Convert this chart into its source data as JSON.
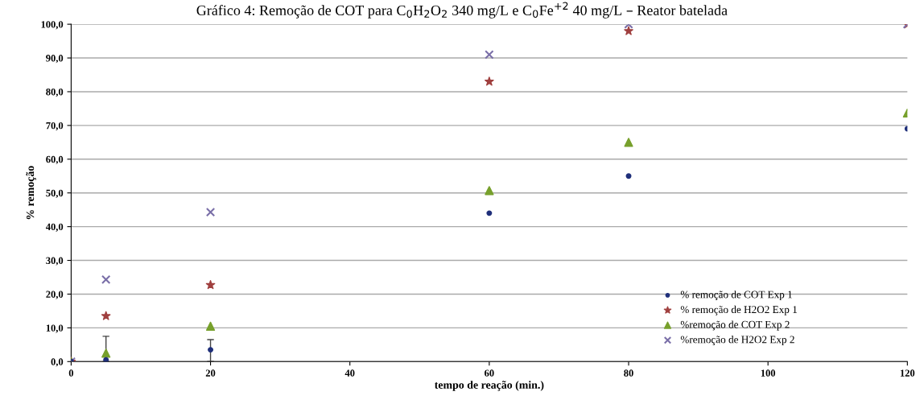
{
  "chart_data": {
    "type": "scatter",
    "title": "Gráfico 4: Remoção de COT para C$_{0}$H$_{2}$O$_{2}$ 340 mg/L e C$_{0}$Fe$^{+2}$ 40 mg/L – Reator batelada",
    "xlabel": "tempo de reação (min.)",
    "ylabel": "% remoção",
    "x": [
      0,
      5,
      20,
      60,
      80,
      120
    ],
    "series": [
      {
        "name": "% remoção de COT Exp 1",
        "color": "#1f2f7a",
        "marker": "circle",
        "values": [
          0,
          0.5,
          3.5,
          44,
          55,
          69
        ],
        "errors": [
          null,
          [
            0,
            7.5
          ],
          [
            0,
            6.5
          ],
          null,
          null,
          null
        ]
      },
      {
        "name": "% remoção de H2O2 Exp 1",
        "color": "#a0403f",
        "marker": "star",
        "values": [
          0,
          13.5,
          22.7,
          83,
          98,
          100
        ]
      },
      {
        "name": "%remoção de COT Exp 2",
        "color": "#77a02c",
        "marker": "triangle",
        "values": [
          0,
          2.5,
          10.5,
          50.7,
          65,
          73.7
        ]
      },
      {
        "name": "%remoção de H2O2 Exp 2",
        "color": "#7a6fa8",
        "marker": "cross",
        "values": [
          0,
          24.3,
          44.3,
          91,
          100,
          100
        ]
      }
    ],
    "xlim": [
      0,
      120
    ],
    "xticks": [
      0,
      20,
      40,
      60,
      80,
      100,
      120
    ],
    "ylim": [
      0,
      100
    ],
    "yticks": [
      {
        "value": 0,
        "label": "0,0"
      },
      {
        "value": 10,
        "label": "10,0"
      },
      {
        "value": 20,
        "label": "20,0"
      },
      {
        "value": 30,
        "label": "30,0"
      },
      {
        "value": 40,
        "label": "40,0"
      },
      {
        "value": 50,
        "label": "50,0"
      },
      {
        "value": 60,
        "label": "60,0"
      },
      {
        "value": 70,
        "label": "70,0"
      },
      {
        "value": 80,
        "label": "80,0"
      },
      {
        "value": 90,
        "label": "90,0"
      },
      {
        "value": 100,
        "label": "100,0"
      }
    ],
    "grid": "y",
    "legend": "bottom right"
  }
}
